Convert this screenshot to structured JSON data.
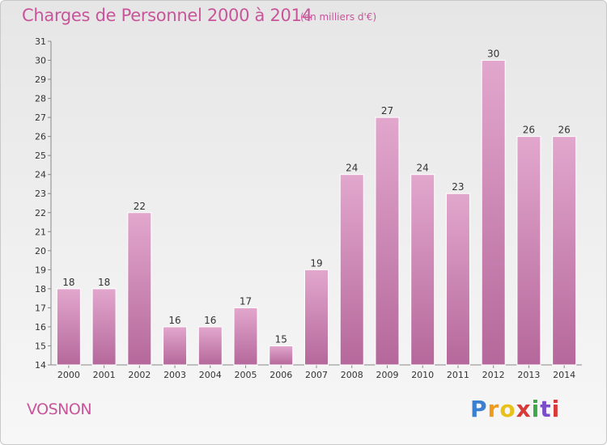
{
  "header": {
    "title": "Charges de Personnel 2000 à 2014",
    "unit": "(en milliers d'€)"
  },
  "footer": {
    "commune": "VOSNON",
    "logo": "Proxiti"
  },
  "colors": {
    "bar_top": "#e2a7cd",
    "bar_bottom": "#b5689b",
    "title": "#c8559a"
  },
  "chart_data": {
    "type": "bar",
    "title": "Charges de Personnel 2000 à 2014",
    "subtitle": "(en milliers d'€)",
    "categories": [
      "2000",
      "2001",
      "2002",
      "2003",
      "2004",
      "2005",
      "2006",
      "2007",
      "2008",
      "2009",
      "2010",
      "2011",
      "2012",
      "2013",
      "2014"
    ],
    "values": [
      18,
      18,
      22,
      16,
      16,
      17,
      15,
      19,
      24,
      27,
      24,
      23,
      30,
      26,
      26
    ],
    "ylim": [
      14,
      31
    ],
    "yticks": [
      14,
      15,
      16,
      17,
      18,
      19,
      20,
      21,
      22,
      23,
      24,
      25,
      26,
      27,
      28,
      29,
      30,
      31
    ],
    "grid": false,
    "legend": "none"
  }
}
